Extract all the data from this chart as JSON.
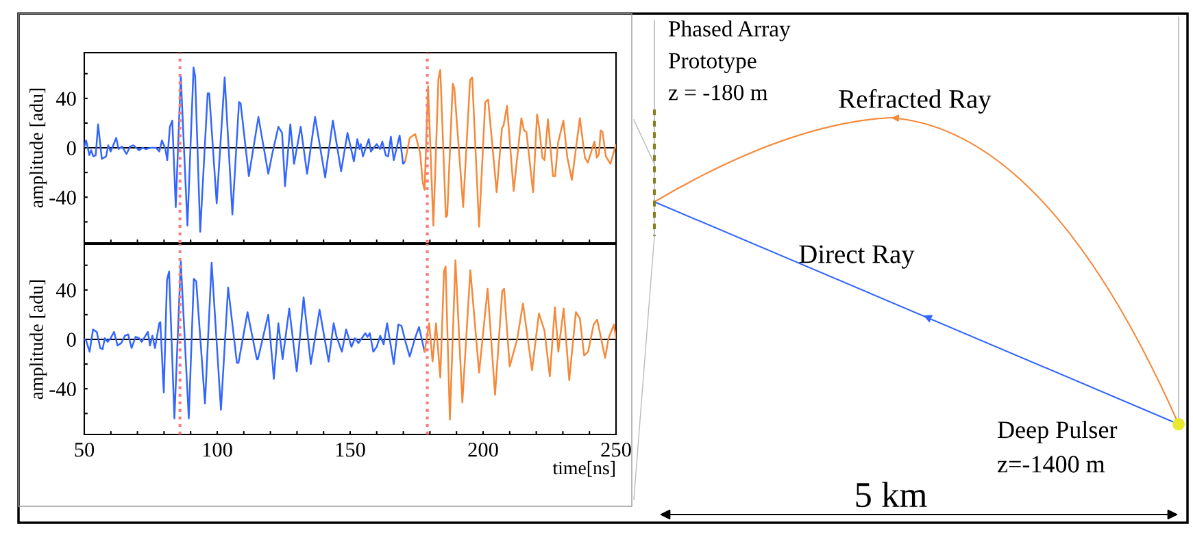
{
  "chart_data": [
    {
      "type": "line",
      "ylabel": "amplitude [adu]",
      "xlim": [
        50,
        250
      ],
      "ylim": [
        -77,
        77
      ],
      "xticks": [
        50,
        {
          "value": 60,
          "label": null
        },
        {
          "value": 70,
          "label": null
        },
        {
          "value": 80,
          "label": null
        },
        {
          "value": 90,
          "label": null
        },
        100,
        {
          "value": 110,
          "label": null
        },
        {
          "value": 120,
          "label": null
        },
        {
          "value": 130,
          "label": null
        },
        {
          "value": 140,
          "label": null
        },
        150,
        {
          "value": 160,
          "label": null
        },
        {
          "value": 170,
          "label": null
        },
        {
          "value": 180,
          "label": null
        },
        {
          "value": 190,
          "label": null
        },
        200,
        {
          "value": 210,
          "label": null
        },
        {
          "value": 220,
          "label": null
        },
        {
          "value": 230,
          "label": null
        },
        {
          "value": 240,
          "label": null
        },
        250
      ],
      "yticks": [
        {
          "value": -60,
          "label": null
        },
        -40,
        {
          "value": -20,
          "label": null
        },
        0,
        {
          "value": 20,
          "label": null
        },
        40,
        {
          "value": 60,
          "label": null
        }
      ],
      "tick_labels": "y",
      "grid": false,
      "legend": false,
      "marker": "none",
      "line_style": "solid",
      "ref_lines": [
        {
          "axis": "y",
          "value": 0,
          "color": "#000000",
          "line_style": "solid"
        },
        {
          "axis": "x",
          "value": 86,
          "color": "#f47c7c",
          "line_style": "dotted"
        },
        {
          "axis": "x",
          "value": 179,
          "color": "#f47c7c",
          "line_style": "dotted"
        }
      ],
      "series": [
        {
          "color": "#3366ff",
          "x": [
            50,
            50.7,
            51.9,
            52.6,
            53.4,
            54.3,
            55.2,
            56.6,
            58.2,
            59,
            59.9,
            60.7,
            62,
            62.9,
            64.2,
            65.9,
            67.2,
            68.5,
            70.6,
            71.9,
            73.2,
            74.9,
            77,
            78.2,
            79.2,
            80.5,
            81.2,
            82.2,
            83.1,
            84.4,
            86.3,
            88.8,
            91.1,
            91.7,
            93.6,
            96.4,
            97,
            99.8,
            102.8,
            105.7,
            108.2,
            108.8,
            111.9,
            115.5,
            119.2,
            120.7,
            123,
            124.4,
            125.5,
            127.5,
            128.9,
            131.4,
            133.8,
            136.8,
            140.6,
            143.5,
            146.6,
            149,
            151.4,
            152.7,
            153.5,
            154,
            154.8,
            157,
            157.8,
            160,
            161.2,
            162.1,
            163.4,
            164.3,
            165.3,
            166.4,
            168.6,
            169.9,
            170.7
          ],
          "values": [
            1,
            6,
            -6,
            -2,
            -7,
            -6,
            19,
            -9,
            -7,
            2,
            -3,
            1,
            8,
            -1,
            1,
            -5,
            1,
            2,
            -2,
            0,
            -1,
            0,
            0,
            -3,
            6,
            -1,
            -10,
            17,
            22,
            -48,
            58,
            -63,
            65,
            58,
            -68,
            44,
            44,
            -45,
            57,
            -54,
            37,
            36,
            -23,
            25,
            -21,
            -5,
            17,
            12,
            -31,
            19,
            -13,
            17,
            -21,
            25,
            -24,
            22,
            -19,
            12,
            -11,
            7,
            -1,
            3,
            -7,
            7,
            -3,
            3,
            -1,
            5,
            -6,
            -7,
            9,
            -10,
            10,
            -13,
            -11
          ]
        },
        {
          "color": "#f5893a",
          "x": [
            170.7,
            172.4,
            173.7,
            174.5,
            176.3,
            177.3,
            178,
            179.3,
            181.3,
            183.2,
            183.9,
            186,
            186.5,
            188.6,
            189.2,
            192.5,
            195.1,
            195.9,
            198.5,
            200.8,
            201.9,
            205.1,
            207.1,
            207.7,
            209,
            211.5,
            214.4,
            215.4,
            216.3,
            218.8,
            220.3,
            221.1,
            222.3,
            223.1,
            224.4,
            226.3,
            227.1,
            228.2,
            230.2,
            231.7,
            233.4,
            236.4,
            238.3,
            239.4,
            240.7,
            241.9,
            242.8,
            243.6,
            244.2,
            244.9,
            246.2,
            247.9,
            249.9
          ],
          "values": [
            -11,
            8,
            10,
            11,
            -4,
            -28,
            -34,
            50,
            -63,
            56,
            63,
            -56,
            -55,
            52,
            48,
            -48,
            55,
            57,
            -64,
            37,
            39,
            -36,
            16,
            18,
            34,
            -35,
            24,
            14,
            13,
            -36,
            27,
            16,
            -8,
            -10,
            23,
            -23,
            -23,
            4,
            22,
            -8,
            -26,
            24,
            -8,
            -12,
            -3,
            5,
            -8,
            -5,
            14,
            13,
            -7,
            -13,
            2
          ]
        }
      ]
    },
    {
      "type": "line",
      "ylabel": "amplitude [adu]",
      "xlabel": "time[ns]",
      "xlim": [
        50,
        250
      ],
      "ylim": [
        -77,
        77
      ],
      "xticks": [
        50,
        {
          "value": 60,
          "label": null
        },
        {
          "value": 70,
          "label": null
        },
        {
          "value": 80,
          "label": null
        },
        {
          "value": 90,
          "label": null
        },
        100,
        {
          "value": 110,
          "label": null
        },
        {
          "value": 120,
          "label": null
        },
        {
          "value": 130,
          "label": null
        },
        {
          "value": 140,
          "label": null
        },
        150,
        {
          "value": 160,
          "label": null
        },
        {
          "value": 170,
          "label": null
        },
        {
          "value": 180,
          "label": null
        },
        {
          "value": 190,
          "label": null
        },
        200,
        {
          "value": 210,
          "label": null
        },
        {
          "value": 220,
          "label": null
        },
        {
          "value": 230,
          "label": null
        },
        {
          "value": 240,
          "label": null
        },
        250
      ],
      "yticks": [
        {
          "value": -60,
          "label": null
        },
        -40,
        {
          "value": -20,
          "label": null
        },
        0,
        {
          "value": 20,
          "label": null
        },
        40,
        {
          "value": 60,
          "label": null
        }
      ],
      "grid": false,
      "legend": false,
      "marker": "none",
      "line_style": "solid",
      "ref_lines": [
        {
          "axis": "y",
          "value": 0,
          "color": "#000000",
          "line_style": "solid"
        },
        {
          "axis": "x",
          "value": 86,
          "color": "#f47c7c",
          "line_style": "dotted"
        },
        {
          "axis": "x",
          "value": 179,
          "color": "#f47c7c",
          "line_style": "dotted"
        }
      ],
      "series": [
        {
          "color": "#3366ff",
          "x": [
            50,
            50.7,
            52,
            53.3,
            54.7,
            56,
            56.9,
            57.7,
            58.8,
            59.9,
            61.2,
            62.5,
            63.9,
            65.3,
            66.5,
            67.8,
            69.3,
            70.6,
            71.6,
            73.9,
            74.7,
            75.6,
            76.6,
            78.2,
            78.6,
            79.9,
            81.1,
            81.9,
            83.9,
            86.3,
            89.3,
            91.2,
            92.1,
            95.4,
            97.9,
            101.4,
            104.1,
            107.4,
            108,
            111.4,
            114.9,
            115.3,
            119.2,
            121.3,
            123,
            124.6,
            127.1,
            129.9,
            132.5,
            135.2,
            138.5,
            141.9,
            143.8,
            144.9,
            146.9,
            148.5,
            150.5,
            151.8,
            153.1,
            155.7,
            156.5,
            157.4,
            158.7,
            160,
            161.3,
            162.6,
            163.9,
            166.4,
            168.1,
            169.3,
            170.7,
            172.4,
            174.4,
            175.9,
            178
          ],
          "values": [
            0,
            -1,
            -10,
            8,
            6,
            -7,
            -8,
            1,
            -2,
            1,
            6,
            -5,
            -3,
            3,
            4,
            -7,
            2,
            1,
            -2,
            6,
            -5,
            3,
            -7,
            13,
            14,
            -43,
            48,
            55,
            -64,
            63,
            -64,
            49,
            47,
            -52,
            62,
            -57,
            42,
            -19,
            -19,
            22,
            -16,
            -16,
            20,
            -32,
            13,
            -16,
            25,
            -26,
            34,
            -20,
            24,
            -18,
            13,
            2,
            -10,
            8,
            -6,
            1,
            -3,
            5,
            2,
            5,
            -10,
            -6,
            3,
            -4,
            13,
            -20,
            12,
            11,
            -1,
            -14,
            1,
            10,
            -10
          ]
        },
        {
          "color": "#f5893a",
          "x": [
            178,
            178.5,
            179.7,
            181,
            182.3,
            183.9,
            185.3,
            185.9,
            187.5,
            189.6,
            192.2,
            195.2,
            198.5,
            201.7,
            204.5,
            207.2,
            207.9,
            210,
            212.8,
            215,
            218.4,
            221,
            223.1,
            225.1,
            227,
            228.3,
            230.3,
            232.4,
            234.9,
            236.4,
            238,
            239.5,
            241.6,
            242.9,
            245.9,
            247.2,
            249.2,
            250
          ],
          "values": [
            -10,
            -3,
            13,
            -18,
            13,
            -31,
            55,
            59,
            -65,
            64,
            -51,
            56,
            -27,
            41,
            -45,
            39,
            41,
            -22,
            0,
            29,
            -25,
            21,
            7,
            -30,
            26,
            -10,
            25,
            -33,
            22,
            17,
            -13,
            -10,
            12,
            16,
            -15,
            1,
            12,
            1
          ]
        }
      ]
    },
    {
      "type": "other",
      "annotations": [
        "Phased Array\nPrototype\nz = -180 m",
        "Refracted Ray",
        "Direct Ray",
        "Deep Pulser\nz=-1400 m",
        "5 km"
      ]
    }
  ]
}
